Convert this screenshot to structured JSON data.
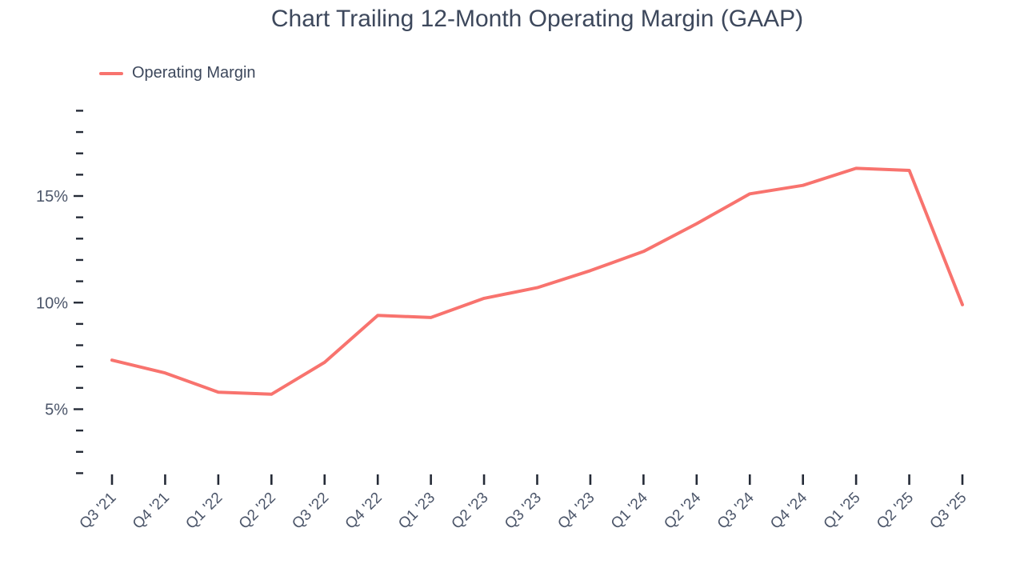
{
  "header": {
    "title": "Chart Trailing 12-Month Operating Margin (GAAP)"
  },
  "legend": {
    "items": [
      {
        "label": "Operating Margin",
        "color": "#F8736E",
        "swatch": "line"
      }
    ]
  },
  "chart_data": {
    "type": "line",
    "title": "Chart Trailing 12-Month Operating Margin (GAAP)",
    "categories": [
      "Q3 '21",
      "Q4 '21",
      "Q1 '22",
      "Q2 '22",
      "Q3 '22",
      "Q4 '22",
      "Q1 '23",
      "Q2 '23",
      "Q3 '23",
      "Q4 '23",
      "Q1 '24",
      "Q2 '24",
      "Q3 '24",
      "Q4 '24",
      "Q1 '25",
      "Q2 '25",
      "Q3 '25"
    ],
    "series": [
      {
        "name": "Operating Margin",
        "color": "#F8736E",
        "values": [
          7.3,
          6.7,
          5.8,
          5.7,
          7.2,
          9.4,
          9.3,
          10.2,
          10.7,
          11.5,
          12.4,
          13.7,
          15.1,
          15.5,
          16.3,
          16.2,
          9.9
        ]
      }
    ],
    "unit": "%",
    "xlabel": "",
    "ylabel": "",
    "y_axis": {
      "min": 2,
      "max": 19,
      "minor_tick_step": 1,
      "labeled_ticks": [
        5,
        10,
        15
      ],
      "tick_label_suffix": "%"
    },
    "x_axis": {
      "tick_rotation": -45
    },
    "grid": false,
    "legend_position": "top-left",
    "colors": {
      "series_line": "#F8736E",
      "axis_tick": "#252B37",
      "axis_label": "#4B5569",
      "title_text": "#3D485C",
      "background": "#FFFFFF"
    }
  }
}
